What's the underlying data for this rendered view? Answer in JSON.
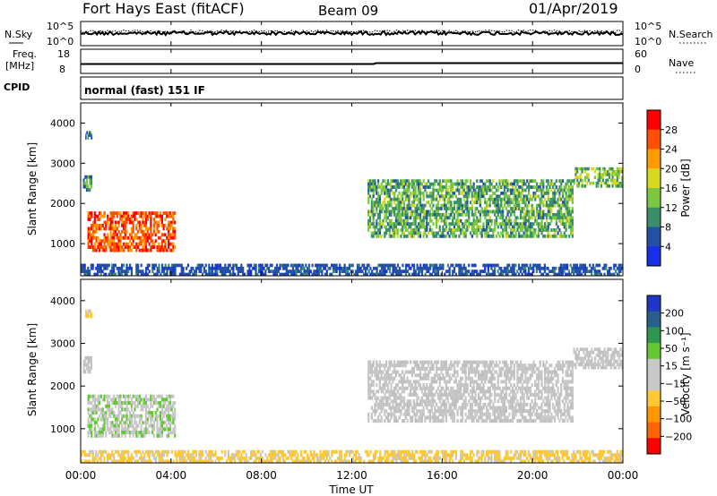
{
  "header": {
    "station": "Fort Hays East (fitACF)",
    "beam": "Beam 09",
    "date": "01/Apr/2019"
  },
  "noise_panel": {
    "left_label": "N.Sky",
    "right_label": "N.Search",
    "left_ticks": [
      "10^5",
      "10^0"
    ],
    "right_ticks": [
      "10^5",
      "10^0"
    ]
  },
  "freq_panel": {
    "left_label_line1": "Freq.",
    "left_label_line2": "[MHz]",
    "right_label": "Nave",
    "left_ticks": [
      "18",
      "8"
    ],
    "right_ticks": [
      "60",
      "0"
    ]
  },
  "cpid_panel": {
    "label": "CPID",
    "text": "normal (fast) 151 IF"
  },
  "time_axis": {
    "label": "Time UT",
    "ticks": [
      "00:00",
      "04:00",
      "08:00",
      "12:00",
      "16:00",
      "20:00",
      "00:00"
    ]
  },
  "colors": {
    "power_scale": [
      "#1530e8",
      "#2450a8",
      "#3a8f6a",
      "#7ac840",
      "#d8d820",
      "#ff9a00",
      "#ff5000",
      "#ff0000"
    ],
    "velocity_scale": [
      "#ff0000",
      "#ff6400",
      "#ff9600",
      "#ffc832",
      "#c8c8c8",
      "#c8c8c8",
      "#64c832",
      "#2f9650",
      "#285f8c",
      "#1e37c8"
    ],
    "ground_scatter": "#c0c0c0"
  },
  "chart_data": [
    {
      "type": "heatmap",
      "name": "Power",
      "ylabel": "Slant Range [km]",
      "xlabel": "",
      "xlim": [
        0,
        24
      ],
      "ylim": [
        200,
        4500
      ],
      "yticks": [
        "1000",
        "2000",
        "3000",
        "4000"
      ],
      "colorbar": {
        "label": "Power [dB]",
        "range": [
          0,
          32
        ],
        "ticks": [
          "4",
          "8",
          "12",
          "16",
          "20",
          "24",
          "28"
        ]
      },
      "regions": [
        {
          "t_start": 0.3,
          "t_end": 4.2,
          "r_start": 800,
          "r_end": 1800,
          "value": 26
        },
        {
          "t_start": 0.1,
          "t_end": 0.5,
          "r_start": 2300,
          "r_end": 2700,
          "value": 10
        },
        {
          "t_start": 0.2,
          "t_end": 0.5,
          "r_start": 3600,
          "r_end": 3800,
          "value": 6
        },
        {
          "t_start": 12.7,
          "t_end": 21.8,
          "r_start": 1150,
          "r_end": 2600,
          "value": 12
        },
        {
          "t_start": 21.8,
          "t_end": 24.0,
          "r_start": 2400,
          "r_end": 2900,
          "value": 14
        },
        {
          "t_start": 0.0,
          "t_end": 24.0,
          "r_start": 200,
          "r_end": 500,
          "value": 6
        }
      ]
    },
    {
      "type": "heatmap",
      "name": "Velocity",
      "ylabel": "Slant Range [km]",
      "xlabel": "Time UT",
      "xlim": [
        0,
        24
      ],
      "ylim": [
        200,
        4500
      ],
      "yticks": [
        "1000",
        "2000",
        "3000",
        "4000"
      ],
      "colorbar": {
        "label": "Velocity [m s⁻¹]",
        "range": [
          -250,
          250
        ],
        "ticks": [
          "200",
          "100",
          "50",
          "15",
          "−15",
          "−50",
          "−100",
          "−200"
        ]
      },
      "regions": [
        {
          "t_start": 0.3,
          "t_end": 4.2,
          "r_start": 800,
          "r_end": 1800,
          "value": 40
        },
        {
          "t_start": 0.1,
          "t_end": 0.5,
          "r_start": 2300,
          "r_end": 2700,
          "value": 0
        },
        {
          "t_start": 0.2,
          "t_end": 0.5,
          "r_start": 3600,
          "r_end": 3800,
          "value": -60
        },
        {
          "t_start": 12.7,
          "t_end": 21.8,
          "r_start": 1150,
          "r_end": 2600,
          "value": 0
        },
        {
          "t_start": 21.8,
          "t_end": 24.0,
          "r_start": 2400,
          "r_end": 2900,
          "value": 0
        },
        {
          "t_start": 0.0,
          "t_end": 24.0,
          "r_start": 200,
          "r_end": 500,
          "value": -40
        }
      ]
    }
  ]
}
